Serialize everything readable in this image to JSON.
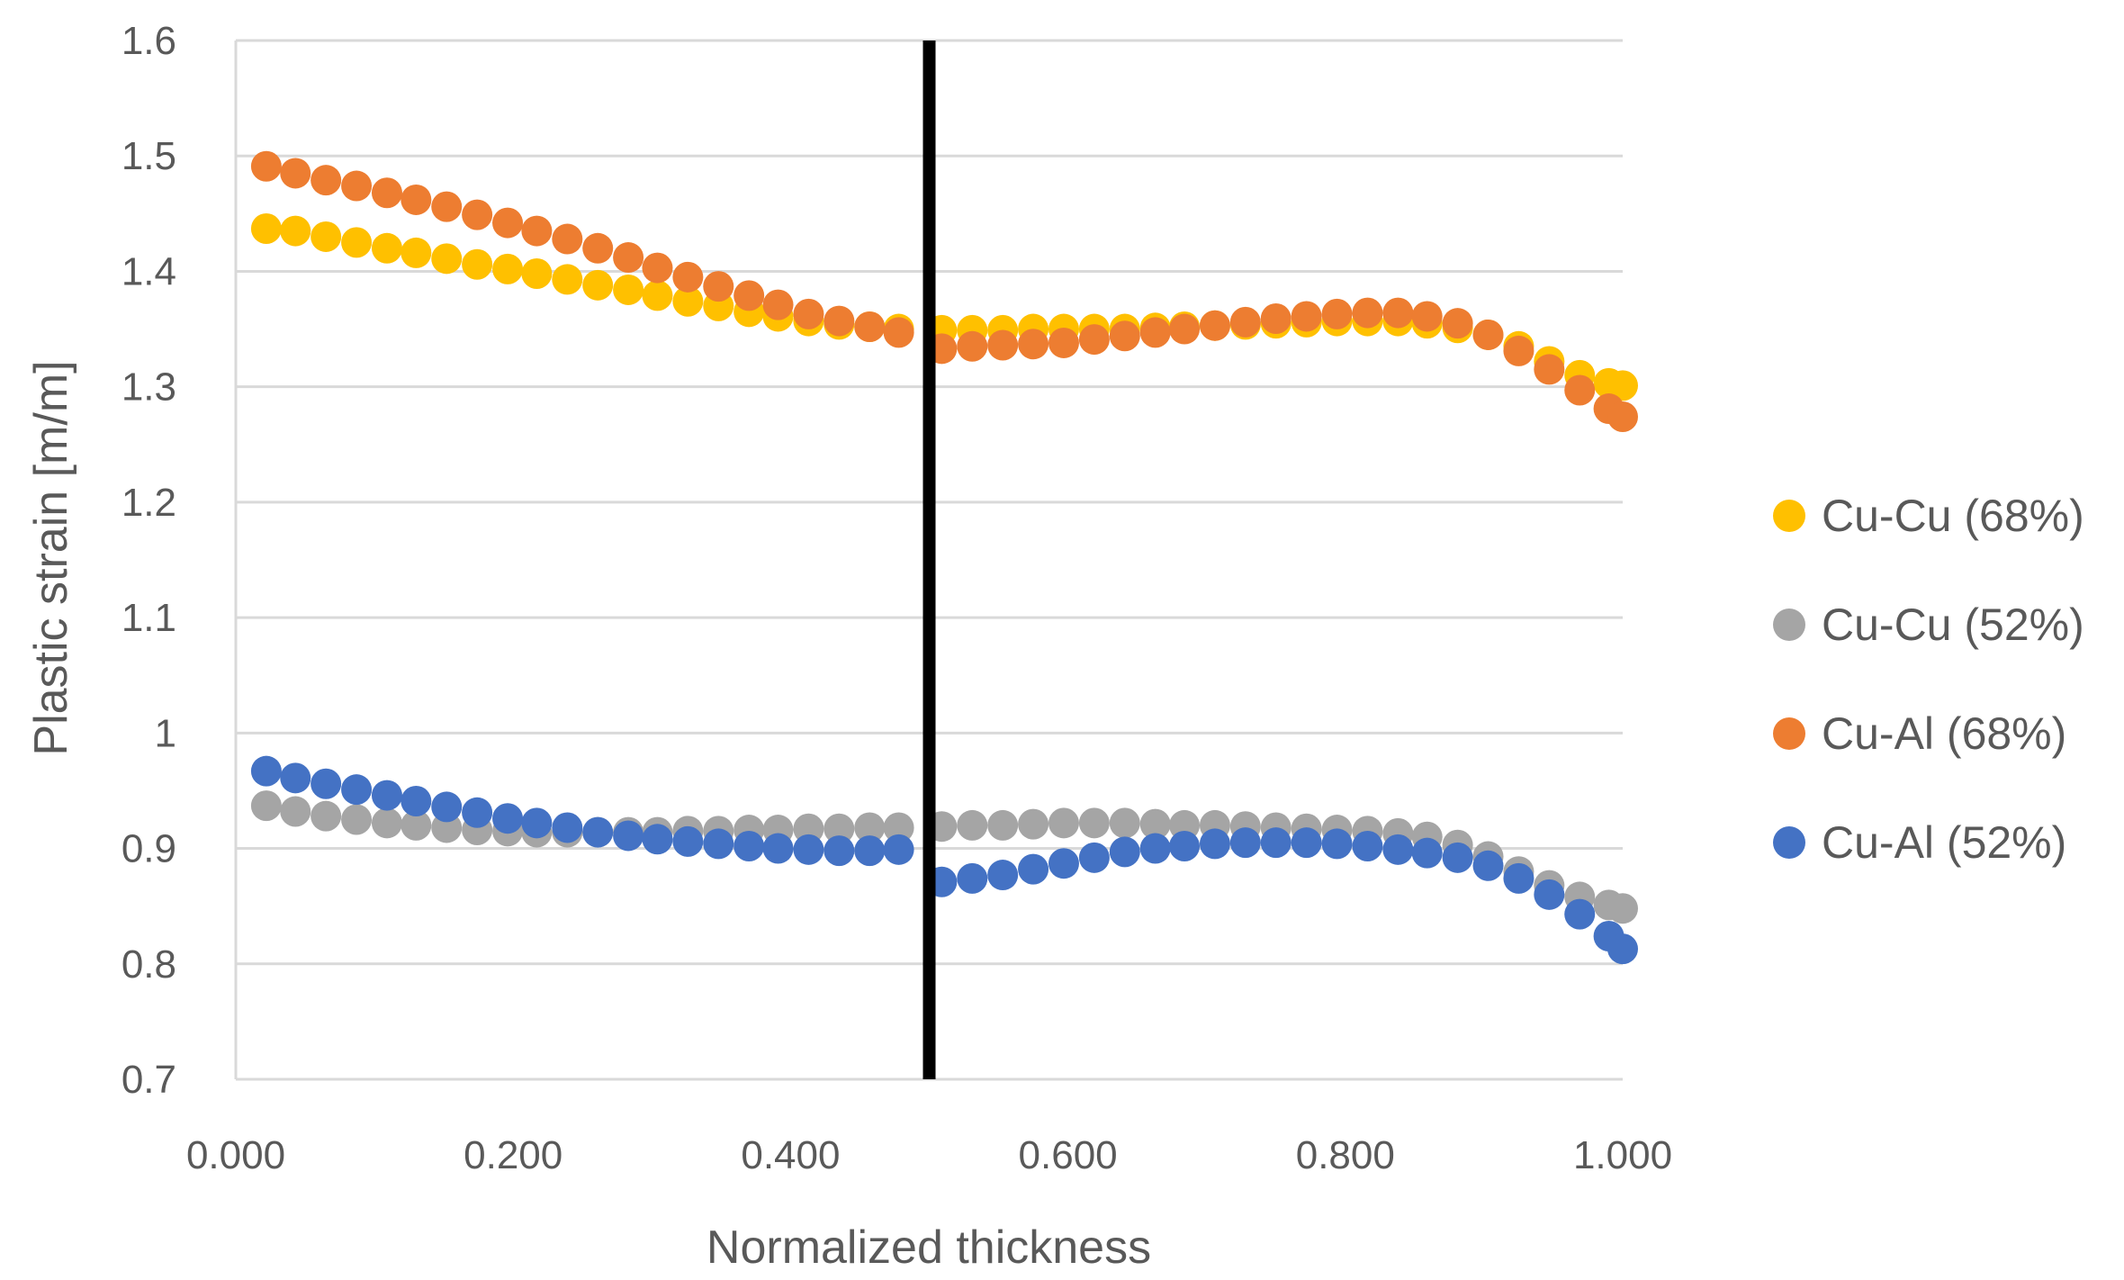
{
  "chart_data": {
    "type": "scatter",
    "title": "",
    "xlabel": "Normalized thickness",
    "ylabel": "Plastic strain [m/m]",
    "xlim": [
      0.0,
      1.0
    ],
    "ylim": [
      0.7,
      1.6
    ],
    "x_ticks": [
      "0.000",
      "0.200",
      "0.400",
      "0.600",
      "0.800",
      "1.000"
    ],
    "y_ticks": [
      "0.7",
      "0.8",
      "0.9",
      "1",
      "1.1",
      "1.2",
      "1.3",
      "1.4",
      "1.5",
      "1.6"
    ],
    "interface_line_x": 0.5,
    "legend_position": "right",
    "x": [
      0.022,
      0.043,
      0.065,
      0.087,
      0.109,
      0.13,
      0.152,
      0.174,
      0.196,
      0.217,
      0.239,
      0.261,
      0.283,
      0.304,
      0.326,
      0.348,
      0.37,
      0.391,
      0.413,
      0.435,
      0.457,
      0.478,
      0.509,
      0.531,
      0.553,
      0.575,
      0.597,
      0.619,
      0.641,
      0.663,
      0.684,
      0.706,
      0.728,
      0.75,
      0.772,
      0.794,
      0.816,
      0.838,
      0.859,
      0.881,
      0.903,
      0.925,
      0.947,
      0.969,
      0.99,
      1.0
    ],
    "series": [
      {
        "name": "Cu-Cu (68%)",
        "color": "#FFC000",
        "values": [
          1.437,
          1.435,
          1.43,
          1.425,
          1.42,
          1.416,
          1.411,
          1.406,
          1.402,
          1.398,
          1.393,
          1.388,
          1.384,
          1.379,
          1.374,
          1.37,
          1.365,
          1.361,
          1.357,
          1.354,
          1.352,
          1.35,
          1.349,
          1.349,
          1.349,
          1.35,
          1.35,
          1.35,
          1.35,
          1.351,
          1.352,
          1.353,
          1.354,
          1.355,
          1.356,
          1.357,
          1.357,
          1.357,
          1.355,
          1.351,
          1.345,
          1.335,
          1.322,
          1.31,
          1.303,
          1.301
        ]
      },
      {
        "name": "Cu-Cu (52%)",
        "color": "#A5A5A5",
        "values": [
          0.937,
          0.932,
          0.928,
          0.925,
          0.922,
          0.92,
          0.918,
          0.916,
          0.915,
          0.914,
          0.914,
          0.914,
          0.914,
          0.914,
          0.915,
          0.915,
          0.916,
          0.916,
          0.917,
          0.917,
          0.918,
          0.918,
          0.919,
          0.92,
          0.92,
          0.921,
          0.922,
          0.922,
          0.922,
          0.921,
          0.92,
          0.92,
          0.919,
          0.918,
          0.917,
          0.916,
          0.915,
          0.913,
          0.91,
          0.903,
          0.893,
          0.88,
          0.868,
          0.858,
          0.851,
          0.848
        ]
      },
      {
        "name": "Cu-Al (68%)",
        "color": "#ED7D31",
        "values": [
          1.491,
          1.485,
          1.479,
          1.474,
          1.468,
          1.462,
          1.456,
          1.449,
          1.442,
          1.435,
          1.428,
          1.42,
          1.412,
          1.403,
          1.395,
          1.387,
          1.379,
          1.371,
          1.363,
          1.357,
          1.352,
          1.347,
          1.333,
          1.335,
          1.336,
          1.337,
          1.338,
          1.341,
          1.344,
          1.347,
          1.35,
          1.353,
          1.356,
          1.359,
          1.361,
          1.363,
          1.364,
          1.364,
          1.361,
          1.355,
          1.345,
          1.331,
          1.315,
          1.297,
          1.281,
          1.274
        ]
      },
      {
        "name": "Cu-Al (52%)",
        "color": "#4472C4",
        "values": [
          0.967,
          0.961,
          0.956,
          0.951,
          0.946,
          0.941,
          0.936,
          0.931,
          0.926,
          0.922,
          0.918,
          0.914,
          0.911,
          0.908,
          0.906,
          0.904,
          0.902,
          0.9,
          0.899,
          0.898,
          0.898,
          0.899,
          0.871,
          0.874,
          0.877,
          0.882,
          0.887,
          0.892,
          0.897,
          0.9,
          0.902,
          0.904,
          0.905,
          0.905,
          0.905,
          0.904,
          0.902,
          0.899,
          0.896,
          0.892,
          0.885,
          0.874,
          0.86,
          0.843,
          0.824,
          0.813
        ]
      }
    ]
  }
}
